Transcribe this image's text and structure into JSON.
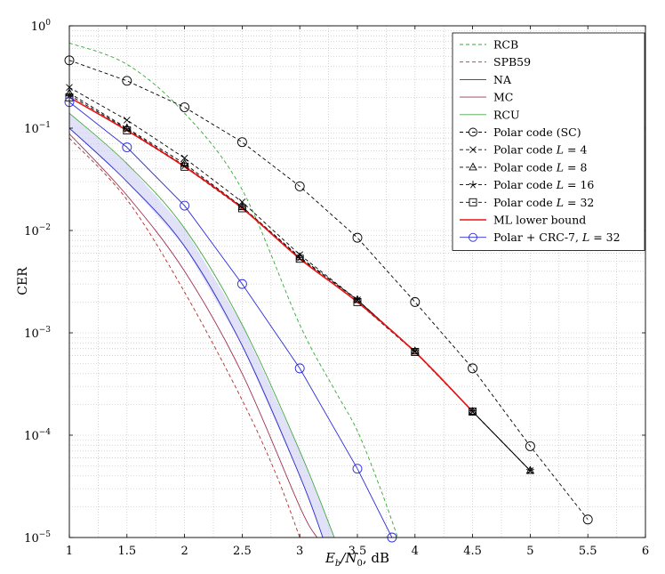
{
  "chart_data": {
    "type": "line",
    "title": "",
    "xlabel": "E_b/N_0, dB",
    "xlabel_parts": {
      "E": "E",
      "b": "b",
      "slash": "/N",
      "zero": "0",
      "unit": ", dB"
    },
    "ylabel": "CER",
    "xlim": [
      1,
      6
    ],
    "ylim": [
      1e-05,
      1
    ],
    "yscale": "log",
    "grid": true,
    "legend_position": "top-right",
    "x_ticks": [
      "1",
      "1.5",
      "2",
      "2.5",
      "3",
      "3.5",
      "4",
      "4.5",
      "5",
      "5.5",
      "6"
    ],
    "x_tick_values": [
      1,
      1.5,
      2,
      2.5,
      3,
      3.5,
      4,
      4.5,
      5,
      5.5,
      6
    ],
    "y_ticks": [
      {
        "base": "10",
        "exp": "0",
        "value": 1
      },
      {
        "base": "10",
        "exp": "−1",
        "value": 0.1
      },
      {
        "base": "10",
        "exp": "−2",
        "value": 0.01
      },
      {
        "base": "10",
        "exp": "−3",
        "value": 0.001
      },
      {
        "base": "10",
        "exp": "−4",
        "value": 0.0001
      },
      {
        "base": "10",
        "exp": "−5",
        "value": 1e-05
      }
    ],
    "series": [
      {
        "name": "RCB",
        "color": "#33aa33",
        "dash": "dashed",
        "marker": "none",
        "x": [
          1.0,
          1.5,
          2.0,
          2.5,
          3.0,
          3.3,
          3.5,
          3.7,
          3.85
        ],
        "y": [
          0.68,
          0.42,
          0.14,
          0.025,
          0.0012,
          0.00028,
          0.00011,
          3e-05,
          1e-05
        ]
      },
      {
        "name": "SPB59",
        "color": "#b03030",
        "dash": "dashed",
        "marker": "none",
        "x": [
          1.0,
          1.5,
          2.0,
          2.5,
          2.8,
          3.0
        ],
        "y": [
          0.08,
          0.02,
          0.0025,
          0.00022,
          4e-05,
          1e-05
        ]
      },
      {
        "name": "NA",
        "color": "#2a2acc",
        "dash": "solid",
        "marker": "none",
        "x": [
          1.0,
          1.5,
          2.0,
          2.5,
          3.0,
          3.2
        ],
        "y": [
          0.1,
          0.03,
          0.007,
          0.00075,
          4e-05,
          1e-05
        ]
      },
      {
        "name": "MC",
        "color": "#a03050",
        "dash": "solid",
        "marker": "none",
        "x": [
          1.0,
          1.5,
          2.0,
          2.5,
          3.0,
          3.15
        ],
        "y": [
          0.088,
          0.022,
          0.004,
          0.0004,
          2e-05,
          1e-05
        ]
      },
      {
        "name": "RCU",
        "color": "#44aa44",
        "dash": "solid",
        "marker": "none",
        "x": [
          1.0,
          1.5,
          2.0,
          2.5,
          3.0,
          3.3
        ],
        "y": [
          0.14,
          0.045,
          0.0105,
          0.0012,
          7e-05,
          1e-05
        ]
      },
      {
        "name": "Polar code (SC)",
        "color": "#000000",
        "dash": "dashed",
        "marker": "circle",
        "x": [
          1,
          1.5,
          2,
          2.5,
          3,
          3.5,
          4,
          4.5,
          5,
          5.5
        ],
        "y": [
          0.46,
          0.29,
          0.16,
          0.073,
          0.027,
          0.0085,
          0.002,
          0.00045,
          7.8e-05,
          1.5e-05
        ]
      },
      {
        "name": "Polar code L = 4",
        "legend_prefix": "Polar code ",
        "legend_math": "L",
        "legend_suffix": " = 4",
        "color": "#000000",
        "dash": "dashed",
        "marker": "x",
        "x": [
          1,
          1.5,
          2,
          2.5,
          3,
          3.5,
          4,
          4.5,
          5
        ],
        "y": [
          0.25,
          0.12,
          0.051,
          0.019,
          0.0058,
          0.0021,
          0.00066,
          0.00017,
          4.5e-05
        ]
      },
      {
        "name": "Polar code L = 8",
        "legend_prefix": "Polar code ",
        "legend_math": "L",
        "legend_suffix": " = 8",
        "color": "#000000",
        "dash": "dashed",
        "marker": "triangle",
        "x": [
          1,
          1.5,
          2,
          2.5,
          3,
          3.5,
          4,
          4.5,
          5
        ],
        "y": [
          0.22,
          0.1,
          0.045,
          0.017,
          0.0055,
          0.0021,
          0.00066,
          0.00017,
          4.5e-05
        ]
      },
      {
        "name": "Polar code L = 16",
        "legend_prefix": "Polar code ",
        "legend_math": "L",
        "legend_suffix": " = 16",
        "color": "#000000",
        "dash": "dashed",
        "marker": "star",
        "x": [
          1,
          1.5,
          2,
          2.5,
          3,
          3.5,
          4,
          4.5,
          5
        ],
        "y": [
          0.21,
          0.098,
          0.043,
          0.017,
          0.0054,
          0.0021,
          0.00066,
          0.00017,
          4.5e-05
        ]
      },
      {
        "name": "Polar code L = 32",
        "legend_prefix": "Polar code ",
        "legend_math": "L",
        "legend_suffix": " = 32",
        "color": "#000000",
        "dash": "dashed",
        "marker": "square",
        "x": [
          1,
          1.5,
          2,
          2.5,
          3,
          3.5,
          4,
          4.5
        ],
        "y": [
          0.2,
          0.095,
          0.042,
          0.0165,
          0.0053,
          0.002,
          0.00065,
          0.00017
        ]
      },
      {
        "name": "ML lower bound",
        "color": "#ee1111",
        "dash": "solid",
        "marker": "none",
        "x": [
          1,
          1.5,
          2,
          2.5,
          3,
          3.5,
          4,
          4.5
        ],
        "y": [
          0.2,
          0.095,
          0.042,
          0.0165,
          0.0053,
          0.002,
          0.00065,
          0.00017
        ]
      },
      {
        "name": "Polar + CRC-7, L = 32",
        "legend_prefix": "Polar + CRC-7, ",
        "legend_math": "L",
        "legend_suffix": " = 32",
        "color": "#2a2add",
        "dash": "solid",
        "marker": "circle",
        "x": [
          1,
          1.5,
          2,
          2.5,
          3,
          3.5,
          3.8
        ],
        "y": [
          0.18,
          0.065,
          0.0175,
          0.003,
          0.00045,
          4.7e-05,
          1e-05
        ]
      }
    ],
    "extra_lines": [
      {
        "name": "Polar code L = 32 tail",
        "color": "#000000",
        "dash": "solid",
        "x": [
          4.5,
          5
        ],
        "y": [
          0.00017,
          4.5e-05
        ]
      }
    ],
    "shaded_band": {
      "between": [
        "NA",
        "RCU"
      ],
      "color": "#c8c8f0"
    }
  }
}
